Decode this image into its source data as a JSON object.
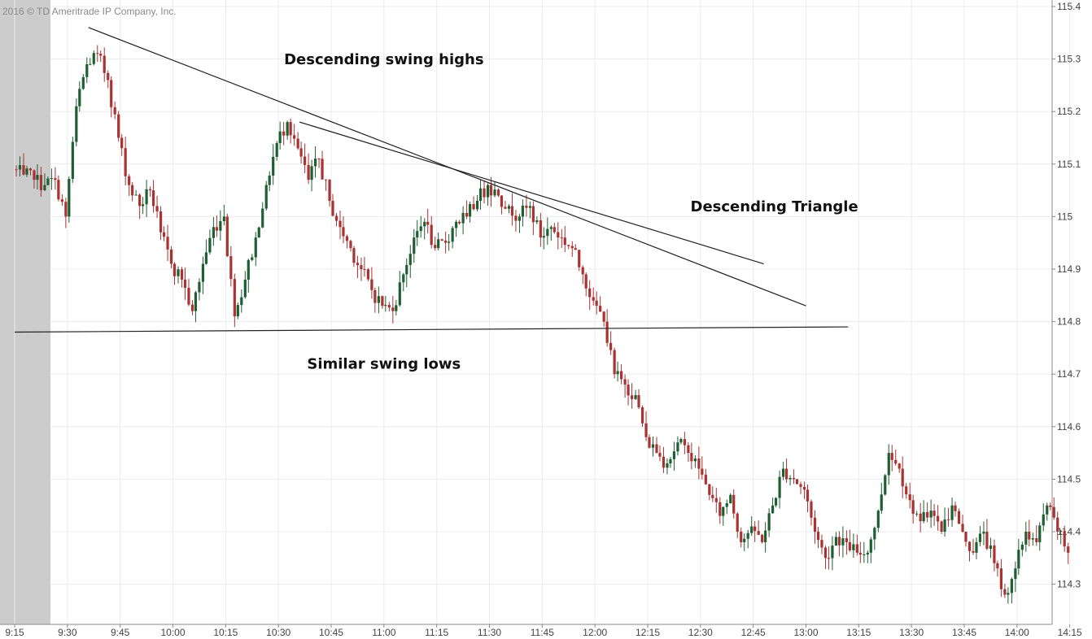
{
  "copyright": "2016 © TD Ameritrade IP Company, Inc.",
  "chart_data": {
    "type": "candlestick",
    "interval_minutes": 3,
    "ylim": [
      114.24,
      115.4
    ],
    "y_ticks": [
      "115.4",
      "115.3",
      "115.2",
      "115.1",
      "115",
      "114.9",
      "114.8",
      "114.7",
      "114.6",
      "114.5",
      "114.4",
      "114.3"
    ],
    "x_ticks": [
      "9:15",
      "9:30",
      "9:45",
      "10:00",
      "10:15",
      "10:30",
      "10:45",
      "11:00",
      "11:15",
      "11:30",
      "11:45",
      "12:00",
      "12:15",
      "12:30",
      "12:45",
      "13:00",
      "13:15",
      "13:30",
      "13:45",
      "14:00",
      "14:15"
    ],
    "premarket_shaded_until": "9:30",
    "colors": {
      "up": "#1e5e32",
      "down": "#a93232",
      "line": "#222222",
      "grid": "#ececec",
      "premarket": "#cccccc"
    },
    "closes": [
      [
        "9:15",
        115.08
      ],
      [
        "9:18",
        115.07
      ],
      [
        "9:21",
        115.06
      ],
      [
        "9:24",
        115.07
      ],
      [
        "9:27",
        115.0
      ],
      [
        "9:30",
        115.21
      ],
      [
        "9:33",
        115.29
      ],
      [
        "9:36",
        115.31
      ],
      [
        "9:39",
        115.26
      ],
      [
        "9:42",
        115.15
      ],
      [
        "9:45",
        115.06
      ],
      [
        "9:48",
        115.02
      ],
      [
        "9:51",
        115.05
      ],
      [
        "9:54",
        114.97
      ],
      [
        "9:57",
        114.91
      ],
      [
        "10:00",
        114.88
      ],
      [
        "10:03",
        114.82
      ],
      [
        "10:06",
        114.91
      ],
      [
        "10:09",
        114.98
      ],
      [
        "10:12",
        115.0
      ],
      [
        "10:15",
        114.81
      ],
      [
        "10:18",
        114.88
      ],
      [
        "10:21",
        114.96
      ],
      [
        "10:24",
        115.06
      ],
      [
        "10:27",
        115.14
      ],
      [
        "10:30",
        115.18
      ],
      [
        "10:33",
        115.13
      ],
      [
        "10:36",
        115.07
      ],
      [
        "10:39",
        115.11
      ],
      [
        "10:42",
        115.03
      ],
      [
        "10:45",
        114.98
      ],
      [
        "10:48",
        114.94
      ],
      [
        "10:51",
        114.9
      ],
      [
        "10:54",
        114.86
      ],
      [
        "10:57",
        114.83
      ],
      [
        "11:00",
        114.82
      ],
      [
        "11:03",
        114.89
      ],
      [
        "11:06",
        114.96
      ],
      [
        "11:09",
        114.99
      ],
      [
        "11:12",
        114.94
      ],
      [
        "11:15",
        114.95
      ],
      [
        "11:18",
        114.99
      ],
      [
        "11:21",
        115.0
      ],
      [
        "11:24",
        115.03
      ],
      [
        "11:27",
        115.06
      ],
      [
        "11:30",
        115.04
      ],
      [
        "11:33",
        115.02
      ],
      [
        "11:36",
        115.0
      ],
      [
        "11:39",
        115.02
      ],
      [
        "11:42",
        114.96
      ],
      [
        "11:45",
        114.98
      ],
      [
        "11:48",
        114.96
      ],
      [
        "11:51",
        114.94
      ],
      [
        "11:54",
        114.89
      ],
      [
        "11:57",
        114.84
      ],
      [
        "12:00",
        114.8
      ],
      [
        "12:03",
        114.7
      ],
      [
        "12:06",
        114.68
      ],
      [
        "12:09",
        114.66
      ],
      [
        "12:12",
        114.58
      ],
      [
        "12:15",
        114.55
      ],
      [
        "12:18",
        114.53
      ],
      [
        "12:21",
        114.57
      ],
      [
        "12:24",
        114.55
      ],
      [
        "12:27",
        114.52
      ],
      [
        "12:30",
        114.47
      ],
      [
        "12:33",
        114.43
      ],
      [
        "12:36",
        114.47
      ],
      [
        "12:39",
        114.38
      ],
      [
        "12:42",
        114.41
      ],
      [
        "12:45",
        114.38
      ],
      [
        "12:48",
        114.45
      ],
      [
        "12:51",
        114.52
      ],
      [
        "12:54",
        114.5
      ],
      [
        "12:57",
        114.48
      ],
      [
        "13:00",
        114.4
      ],
      [
        "13:03",
        114.35
      ],
      [
        "13:06",
        114.39
      ],
      [
        "13:09",
        114.38
      ],
      [
        "13:12",
        114.36
      ],
      [
        "13:15",
        114.36
      ],
      [
        "13:18",
        114.44
      ],
      [
        "13:21",
        114.55
      ],
      [
        "13:24",
        114.52
      ],
      [
        "13:27",
        114.46
      ],
      [
        "13:30",
        114.42
      ],
      [
        "13:33",
        114.44
      ],
      [
        "13:36",
        114.4
      ],
      [
        "13:39",
        114.45
      ],
      [
        "13:42",
        114.4
      ],
      [
        "13:45",
        114.36
      ],
      [
        "13:48",
        114.4
      ],
      [
        "13:51",
        114.34
      ],
      [
        "13:54",
        114.28
      ],
      [
        "13:57",
        114.33
      ],
      [
        "14:00",
        114.4
      ],
      [
        "14:03",
        114.38
      ],
      [
        "14:06",
        114.45
      ],
      [
        "14:09",
        114.4
      ],
      [
        "14:12",
        114.36
      ]
    ],
    "trendlines": [
      {
        "name": "upper-resistance-line",
        "from": [
          "9:36",
          115.36
        ],
        "to": [
          "13:00",
          114.83
        ]
      },
      {
        "name": "secondary-resistance-line",
        "from": [
          "10:36",
          115.18
        ],
        "to": [
          "12:48",
          114.91
        ]
      },
      {
        "name": "support-line",
        "from": [
          "9:15",
          114.78
        ],
        "to": [
          "13:12",
          114.79
        ]
      }
    ],
    "annotations": [
      {
        "text": "Descending swing highs",
        "at": [
          "11:00",
          115.29
        ]
      },
      {
        "text": "Descending Triangle",
        "at": [
          "12:51",
          115.01
        ]
      },
      {
        "text": "Similar swing lows",
        "at": [
          "11:00",
          114.71
        ]
      }
    ]
  }
}
